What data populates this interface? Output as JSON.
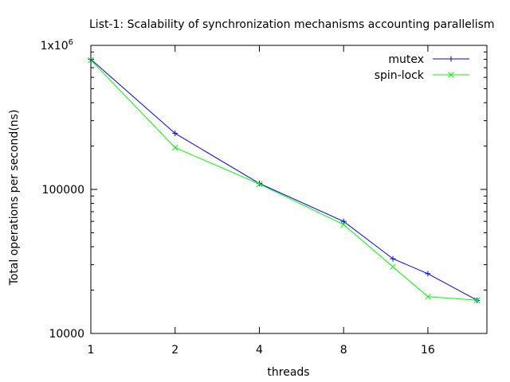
{
  "chart_data": {
    "type": "line",
    "title": "List-1: Scalability of synchronization mechanisms accounting parallelism",
    "xlabel": "threads",
    "ylabel": "Total operations per second(ns)",
    "x_scale": "log2",
    "y_scale": "log10",
    "xlim": [
      1,
      26
    ],
    "ylim": [
      10000,
      1000000
    ],
    "x_ticks": [
      1,
      2,
      4,
      8,
      16
    ],
    "x_tick_labels": [
      "1",
      "2",
      "4",
      "8",
      "16"
    ],
    "y_ticks": [
      10000,
      100000,
      1000000
    ],
    "y_tick_labels": [
      "10000",
      "100000",
      "1x10"
    ],
    "y_tick_top_exponent": "6",
    "x": [
      1,
      2,
      4,
      8,
      12,
      16,
      24
    ],
    "series": [
      {
        "name": "mutex",
        "color": "#0000ff",
        "marker": "plus",
        "values": [
          800000,
          245000,
          110000,
          60000,
          33000,
          26000,
          17000
        ]
      },
      {
        "name": "spin-lock",
        "color": "#00ff00",
        "marker": "cross",
        "values": [
          790000,
          195000,
          109000,
          57000,
          29000,
          18000,
          17000
        ]
      }
    ],
    "grid": false,
    "legend_position": "top-right"
  }
}
